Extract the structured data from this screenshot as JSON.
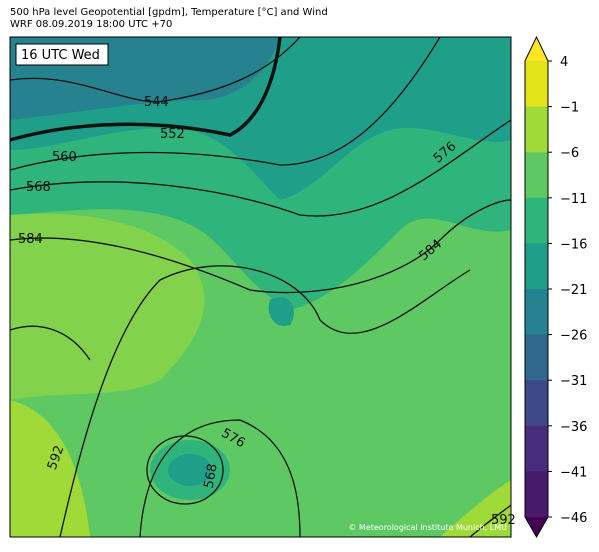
{
  "header": {
    "title": "500 hPa level Geopotential [gpdm], Temperature [°C] and Wind",
    "subtitle": "WRF 08.09.2019 18:00 UTC +70"
  },
  "map": {
    "time_label": "16 UTC Wed",
    "credit": "© Meteorological Institute Munich, LMU",
    "contour_labels": [
      "544",
      "552",
      "560",
      "568",
      "584",
      "576",
      "584",
      "576",
      "568",
      "592",
      "592"
    ]
  },
  "colorbar": {
    "ticks": [
      "4",
      "−1",
      "−6",
      "−11",
      "−16",
      "−21",
      "−26",
      "−31",
      "−36",
      "−41",
      "−46"
    ],
    "colors": [
      "#fde725",
      "#e2e418",
      "#a0da39",
      "#5ec962",
      "#2fb47c",
      "#1f9e89",
      "#26828e",
      "#31688e",
      "#3e4989",
      "#472d7b",
      "#481a6c",
      "#440154"
    ]
  }
}
